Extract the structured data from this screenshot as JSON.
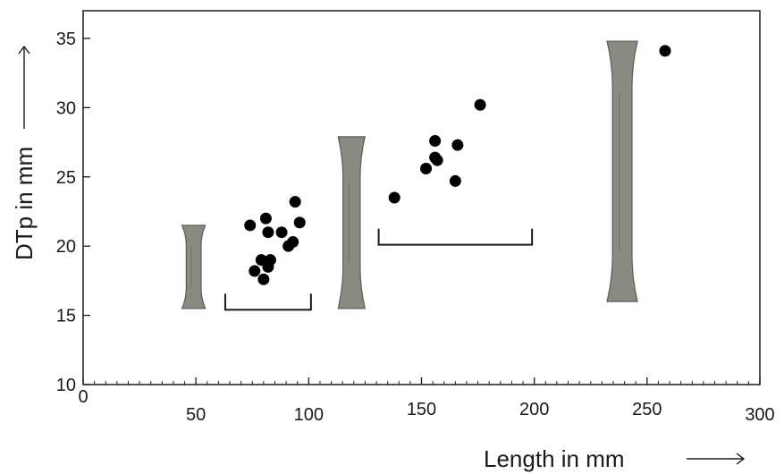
{
  "chart_data": {
    "type": "scatter",
    "title": "",
    "xlabel": "Length in mm",
    "ylabel": "DTp in mm",
    "xlim": [
      0,
      300
    ],
    "ylim": [
      10,
      37
    ],
    "x_ticks": [
      0,
      50,
      100,
      150,
      200,
      250,
      300
    ],
    "y_ticks": [
      10,
      15,
      20,
      25,
      30,
      35
    ],
    "grid": false,
    "series": [
      {
        "values": [
          {
            "x": 74,
            "y": 21.5
          },
          {
            "x": 81,
            "y": 22.0
          },
          {
            "x": 82,
            "y": 21.0
          },
          {
            "x": 88,
            "y": 21.0
          },
          {
            "x": 94,
            "y": 23.2
          },
          {
            "x": 96,
            "y": 21.7
          },
          {
            "x": 91,
            "y": 20.0
          },
          {
            "x": 93,
            "y": 20.3
          },
          {
            "x": 79,
            "y": 19.0
          },
          {
            "x": 83,
            "y": 19.0
          },
          {
            "x": 82,
            "y": 18.5
          },
          {
            "x": 76,
            "y": 18.2
          },
          {
            "x": 80,
            "y": 17.6
          },
          {
            "x": 138,
            "y": 23.5
          },
          {
            "x": 152,
            "y": 25.6
          },
          {
            "x": 156,
            "y": 26.4
          },
          {
            "x": 157,
            "y": 26.2
          },
          {
            "x": 156,
            "y": 27.6
          },
          {
            "x": 166,
            "y": 27.3
          },
          {
            "x": 165,
            "y": 24.7
          },
          {
            "x": 176,
            "y": 30.2
          },
          {
            "x": 258,
            "y": 34.1
          }
        ]
      }
    ],
    "range_brackets": [
      {
        "x_start": 63,
        "x_end": 101,
        "y": 15.4
      },
      {
        "x_start": 131,
        "x_end": 199,
        "y": 20.1
      }
    ],
    "bone_images": [
      {
        "x_center": 49,
        "y_top": 21.5,
        "y_bottom": 15.5
      },
      {
        "x_center": 119,
        "y_top": 27.9,
        "y_bottom": 15.5
      },
      {
        "x_center": 239,
        "y_top": 34.8,
        "y_bottom": 16.0
      }
    ],
    "colors": {
      "axis": "#1a1a1a",
      "points": "#000000",
      "bone": "#8a8a84",
      "bone_dark": "#5c5c57"
    }
  }
}
